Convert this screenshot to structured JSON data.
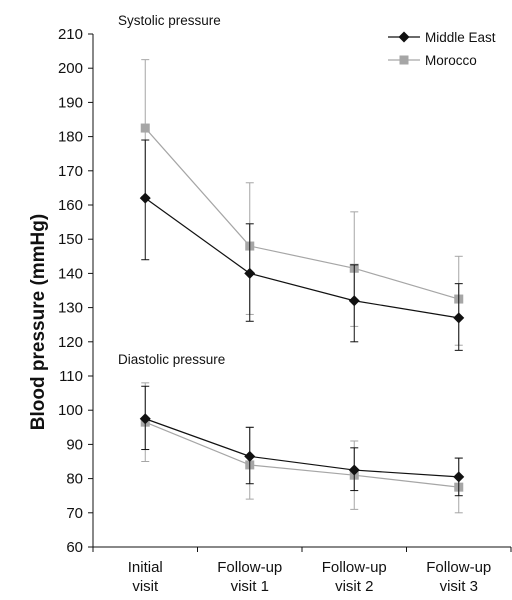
{
  "chart_data": {
    "type": "line",
    "ylabel": "Blood pressure (mmHg)",
    "xlabel": "",
    "categories": [
      [
        "Initial",
        "visit"
      ],
      [
        "Follow-up",
        "visit 1"
      ],
      [
        "Follow-up",
        "visit 2"
      ],
      [
        "Follow-up",
        "visit 3"
      ]
    ],
    "ylim": [
      60,
      210
    ],
    "yticks": [
      60,
      70,
      80,
      90,
      100,
      110,
      120,
      130,
      140,
      150,
      160,
      170,
      180,
      190,
      200,
      210
    ],
    "grid": false,
    "legend_position": "top-right",
    "annotations": [
      "Systolic pressure",
      "Diastolic pressure"
    ],
    "series": [
      {
        "name": "Middle East",
        "group": "systolic",
        "marker": "diamond",
        "color": "#111111",
        "values": [
          162,
          140,
          132,
          127
        ],
        "error_low": [
          144,
          126,
          120,
          117.5
        ],
        "error_high": [
          179,
          154.5,
          142.5,
          137
        ]
      },
      {
        "name": "Morocco",
        "group": "systolic",
        "marker": "square",
        "color": "#a6a6a6",
        "values": [
          182.5,
          148,
          141.5,
          132.5
        ],
        "error_low": [
          162.5,
          128,
          124.5,
          119
        ],
        "error_high": [
          202.5,
          166.5,
          158,
          145
        ]
      },
      {
        "name": "Middle East",
        "group": "diastolic",
        "marker": "diamond",
        "color": "#111111",
        "values": [
          97.5,
          86.5,
          82.5,
          80.5
        ],
        "error_low": [
          88.5,
          78.5,
          76.5,
          75
        ],
        "error_high": [
          107,
          95,
          89,
          86
        ]
      },
      {
        "name": "Morocco",
        "group": "diastolic",
        "marker": "square",
        "color": "#a6a6a6",
        "values": [
          96.5,
          84,
          81,
          77.5
        ],
        "error_low": [
          85,
          74,
          71,
          70
        ],
        "error_high": [
          108,
          95,
          91,
          86
        ]
      }
    ],
    "legend": [
      {
        "name": "Middle East",
        "marker": "diamond",
        "color": "#111111"
      },
      {
        "name": "Morocco",
        "marker": "square",
        "color": "#a6a6a6"
      }
    ]
  }
}
